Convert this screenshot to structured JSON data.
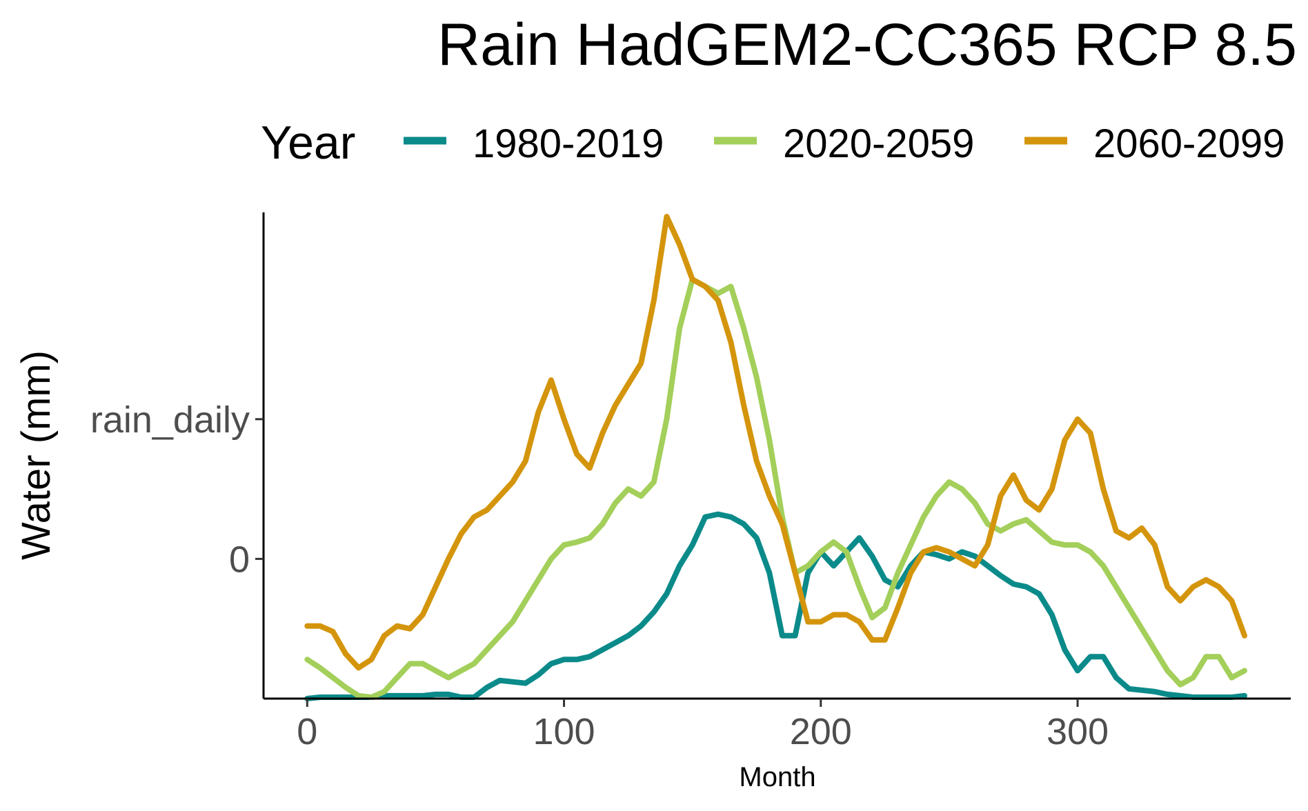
{
  "chart_data": {
    "type": "line",
    "title": "Rain HadGEM2-CC365 RCP 8.5",
    "xlabel": "Month",
    "ylabel": "Water (mm)",
    "xlim": [
      -17,
      383
    ],
    "ylim": [
      -1.0,
      2.48
    ],
    "x_ticks": [
      {
        "value": 0,
        "label": "0"
      },
      {
        "value": 100,
        "label": "100"
      },
      {
        "value": 200,
        "label": "200"
      },
      {
        "value": 300,
        "label": "300"
      }
    ],
    "y_ticks": [
      {
        "value": 0,
        "label": "0"
      },
      {
        "value": 1,
        "label": "rain_daily"
      }
    ],
    "grid": false,
    "legend": {
      "title": "Year",
      "position": "top"
    },
    "series": [
      {
        "name": "1980-2019",
        "color": "#0B8A8A",
        "x": [
          0,
          5,
          10,
          15,
          20,
          25,
          30,
          35,
          40,
          45,
          50,
          55,
          60,
          65,
          70,
          75,
          80,
          85,
          90,
          95,
          100,
          105,
          110,
          115,
          120,
          125,
          130,
          135,
          140,
          145,
          150,
          155,
          160,
          165,
          170,
          175,
          180,
          185,
          190,
          195,
          200,
          205,
          210,
          215,
          220,
          225,
          230,
          235,
          240,
          245,
          250,
          255,
          260,
          265,
          270,
          275,
          280,
          285,
          290,
          295,
          300,
          305,
          310,
          315,
          320,
          325,
          330,
          335,
          340,
          345,
          350,
          355,
          360,
          365
        ],
        "y": [
          -1.0,
          -0.99,
          -0.99,
          -0.99,
          -0.99,
          -0.99,
          -0.98,
          -0.98,
          -0.98,
          -0.98,
          -0.97,
          -0.97,
          -0.99,
          -0.99,
          -0.92,
          -0.87,
          -0.88,
          -0.89,
          -0.83,
          -0.75,
          -0.72,
          -0.72,
          -0.7,
          -0.65,
          -0.6,
          -0.55,
          -0.48,
          -0.38,
          -0.25,
          -0.05,
          0.1,
          0.3,
          0.32,
          0.3,
          0.25,
          0.15,
          -0.1,
          -0.55,
          -0.55,
          -0.1,
          0.05,
          -0.05,
          0.05,
          0.15,
          0.02,
          -0.15,
          -0.2,
          -0.05,
          0.05,
          0.03,
          0.0,
          0.05,
          0.02,
          -0.05,
          -0.12,
          -0.18,
          -0.2,
          -0.25,
          -0.4,
          -0.65,
          -0.8,
          -0.7,
          -0.7,
          -0.85,
          -0.93,
          -0.94,
          -0.95,
          -0.97,
          -0.98,
          -0.99,
          -0.99,
          -0.99,
          -0.99,
          -0.98
        ]
      },
      {
        "name": "2020-2059",
        "color": "#A3CF5A",
        "x": [
          0,
          5,
          10,
          15,
          20,
          25,
          30,
          35,
          40,
          45,
          50,
          55,
          60,
          65,
          70,
          75,
          80,
          85,
          90,
          95,
          100,
          105,
          110,
          115,
          120,
          125,
          130,
          135,
          140,
          145,
          150,
          155,
          160,
          165,
          170,
          175,
          180,
          185,
          190,
          195,
          200,
          205,
          210,
          215,
          220,
          225,
          230,
          235,
          240,
          245,
          250,
          255,
          260,
          265,
          270,
          275,
          280,
          285,
          290,
          295,
          300,
          305,
          310,
          315,
          320,
          325,
          330,
          335,
          340,
          345,
          350,
          355,
          360,
          365
        ],
        "y": [
          -0.72,
          -0.78,
          -0.85,
          -0.92,
          -0.98,
          -0.99,
          -0.95,
          -0.85,
          -0.75,
          -0.75,
          -0.8,
          -0.85,
          -0.8,
          -0.75,
          -0.65,
          -0.55,
          -0.45,
          -0.3,
          -0.15,
          0.0,
          0.1,
          0.12,
          0.15,
          0.25,
          0.4,
          0.5,
          0.45,
          0.55,
          1.0,
          1.65,
          2.0,
          1.95,
          1.9,
          1.95,
          1.65,
          1.3,
          0.85,
          0.3,
          -0.1,
          -0.05,
          0.05,
          0.12,
          0.05,
          -0.2,
          -0.42,
          -0.35,
          -0.1,
          0.1,
          0.3,
          0.45,
          0.55,
          0.5,
          0.4,
          0.25,
          0.2,
          0.25,
          0.28,
          0.2,
          0.12,
          0.1,
          0.1,
          0.05,
          -0.05,
          -0.2,
          -0.35,
          -0.5,
          -0.65,
          -0.8,
          -0.9,
          -0.85,
          -0.7,
          -0.7,
          -0.85,
          -0.8
        ]
      },
      {
        "name": "2060-2099",
        "color": "#D4950C",
        "x": [
          0,
          5,
          10,
          15,
          20,
          25,
          30,
          35,
          40,
          45,
          50,
          55,
          60,
          65,
          70,
          75,
          80,
          85,
          90,
          95,
          100,
          105,
          110,
          115,
          120,
          125,
          130,
          135,
          140,
          145,
          150,
          155,
          160,
          165,
          170,
          175,
          180,
          185,
          190,
          195,
          200,
          205,
          210,
          215,
          220,
          225,
          230,
          235,
          240,
          245,
          250,
          255,
          260,
          265,
          270,
          275,
          280,
          285,
          290,
          295,
          300,
          305,
          310,
          315,
          320,
          325,
          330,
          335,
          340,
          345,
          350,
          355,
          360,
          365
        ],
        "y": [
          -0.48,
          -0.48,
          -0.52,
          -0.68,
          -0.78,
          -0.72,
          -0.55,
          -0.48,
          -0.5,
          -0.4,
          -0.2,
          0.0,
          0.18,
          0.3,
          0.35,
          0.45,
          0.55,
          0.7,
          1.05,
          1.28,
          1.0,
          0.75,
          0.65,
          0.9,
          1.1,
          1.25,
          1.4,
          1.85,
          2.45,
          2.25,
          2.0,
          1.95,
          1.85,
          1.55,
          1.1,
          0.7,
          0.45,
          0.25,
          -0.1,
          -0.45,
          -0.45,
          -0.4,
          -0.4,
          -0.45,
          -0.58,
          -0.58,
          -0.35,
          -0.1,
          0.05,
          0.08,
          0.05,
          0.0,
          -0.05,
          0.1,
          0.45,
          0.6,
          0.42,
          0.35,
          0.5,
          0.85,
          1.0,
          0.9,
          0.5,
          0.2,
          0.15,
          0.22,
          0.1,
          -0.2,
          -0.3,
          -0.2,
          -0.15,
          -0.2,
          -0.3,
          -0.55
        ]
      }
    ]
  }
}
